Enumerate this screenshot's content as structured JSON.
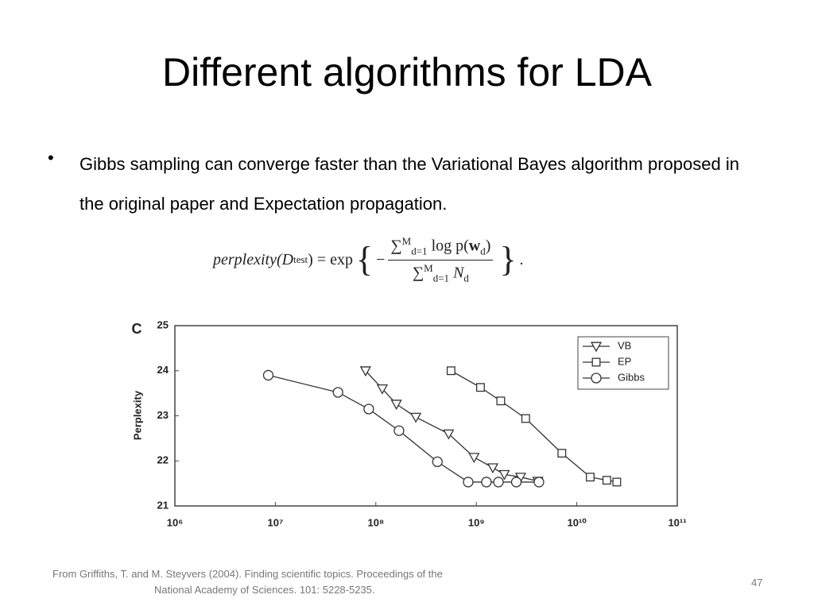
{
  "title": "Different algorithms for LDA",
  "bullet": "Gibbs sampling can converge faster than the Variational Bayes algorithm proposed in the original paper and Expectation propagation.",
  "formula": {
    "lhs": "perplexity(",
    "lhs_var": "D",
    "lhs_sub": "test",
    "lhs_close": ")",
    "equals": "=",
    "func": "exp",
    "open": "{",
    "minus": "−",
    "num_sum": "∑",
    "num_sup": "M",
    "num_sub": "d=1",
    "num_text": "log p(",
    "num_bold": "w",
    "num_var_sub": "d",
    "num_close": ")",
    "den_sum": "∑",
    "den_sup": "M",
    "den_sub": "d=1",
    "den_var": "N",
    "den_var_sub": "d",
    "close": "}",
    "period": "."
  },
  "chart_data": {
    "type": "line",
    "panel_label": "C",
    "y_label": "Perplexity",
    "x_scale": "log",
    "xlim": [
      1000000,
      100000000000
    ],
    "ylim": [
      21,
      25
    ],
    "xticks": [
      {
        "value": 1000000,
        "label": "10⁶"
      },
      {
        "value": 10000000,
        "label": "10⁷"
      },
      {
        "value": 100000000,
        "label": "10⁸"
      },
      {
        "value": 1000000000,
        "label": "10⁹"
      },
      {
        "value": 10000000000,
        "label": "10¹⁰"
      },
      {
        "value": 100000000000,
        "label": "10¹¹"
      }
    ],
    "yticks": [
      21,
      22,
      23,
      24,
      25
    ],
    "grid": false,
    "legend": "upper right",
    "series": [
      {
        "name": "VB",
        "color": "#333333",
        "marker": "triangle-down",
        "x": [
          79000000,
          116000000,
          160000000,
          250000000,
          530000000,
          950000000,
          1460000000,
          1900000000,
          2760000000,
          4100000000
        ],
        "values": [
          24.0,
          23.6,
          23.26,
          22.97,
          22.6,
          22.08,
          21.85,
          21.7,
          21.64,
          21.55
        ]
      },
      {
        "name": "EP",
        "color": "#333333",
        "marker": "square",
        "x": [
          560000000,
          1100000000,
          1750000000,
          3100000000,
          7100000000,
          13600000000,
          19900000000,
          25000000000
        ],
        "values": [
          24.0,
          23.63,
          23.33,
          22.94,
          22.17,
          21.64,
          21.57,
          21.53
        ]
      },
      {
        "name": "Gibbs",
        "color": "#333333",
        "marker": "circle",
        "x": [
          8500000,
          42000000,
          85000000,
          170000000,
          410000000,
          830000000,
          1260000000,
          1660000000,
          2500000000,
          4200000000
        ],
        "values": [
          23.9,
          23.52,
          23.15,
          22.67,
          21.98,
          21.53,
          21.53,
          21.53,
          21.53,
          21.53
        ]
      }
    ]
  },
  "footer": [
    "From Griffiths, T. and M. Steyvers (2004). Finding scientific topics. Proceedings of the",
    "National Academy of Sciences. 101: 5228-5235."
  ],
  "page_number": "47"
}
